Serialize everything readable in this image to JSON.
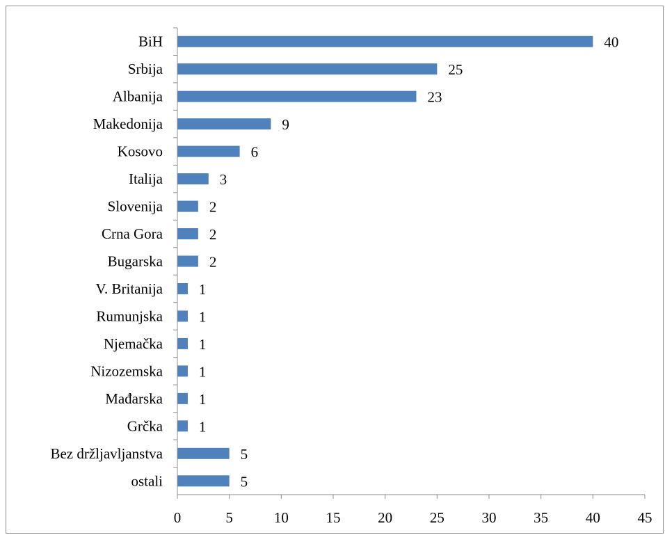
{
  "chart_data": {
    "type": "bar",
    "orientation": "horizontal",
    "title": "",
    "xlabel": "",
    "ylabel": "",
    "categories": [
      "BiH",
      "Srbija",
      "Albanija",
      "Makedonija",
      "Kosovo",
      "Italija",
      "Slovenija",
      "Crna Gora",
      "Bugarska",
      "V. Britanija",
      "Rumunjska",
      "Njemačka",
      "Nizozemska",
      "Mađarska",
      "Grčka",
      "Bez držljavljanstva",
      "ostali"
    ],
    "values": [
      40,
      25,
      23,
      9,
      6,
      3,
      2,
      2,
      2,
      1,
      1,
      1,
      1,
      1,
      1,
      5,
      5
    ],
    "xlim": [
      0,
      45
    ],
    "xticks": [
      0,
      5,
      10,
      15,
      20,
      25,
      30,
      35,
      40,
      45
    ],
    "data_labels": true,
    "grid": false,
    "legend": "none",
    "bar_color": "#4f81bd"
  }
}
